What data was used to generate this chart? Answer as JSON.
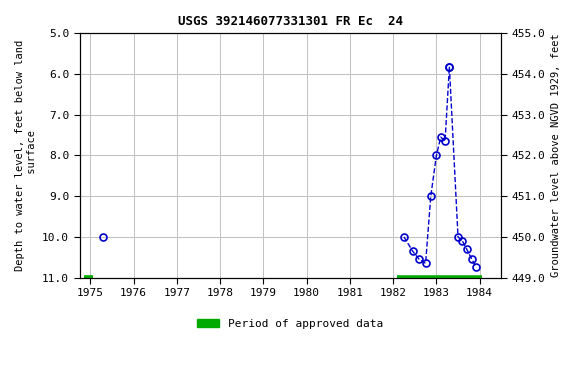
{
  "title": "USGS 392146077331301 FR Ec  24",
  "ylabel_left": "Depth to water level, feet below land\n surface",
  "ylabel_right": "Groundwater level above NGVD 1929, feet",
  "xlim": [
    1974.75,
    1984.5
  ],
  "ylim_left": [
    5.0,
    11.0
  ],
  "ylim_right": [
    449.0,
    455.0
  ],
  "xticks": [
    1975,
    1976,
    1977,
    1978,
    1979,
    1980,
    1981,
    1982,
    1983,
    1984
  ],
  "yticks_left": [
    5.0,
    6.0,
    7.0,
    8.0,
    9.0,
    10.0,
    11.0
  ],
  "yticks_right": [
    449.0,
    450.0,
    451.0,
    452.0,
    453.0,
    454.0,
    455.0
  ],
  "isolated_x": [
    1975.3
  ],
  "isolated_depth": [
    10.0
  ],
  "segment1_x": [
    1982.25,
    1982.45,
    1982.6,
    1982.75,
    1982.87,
    1983.0,
    1983.1,
    1983.2,
    1983.3
  ],
  "segment1_depth": [
    10.0,
    10.35,
    10.55,
    10.65,
    9.0,
    8.0,
    7.55,
    7.65,
    5.82
  ],
  "segment2_x": [
    1983.3,
    1983.5,
    1983.6,
    1983.7,
    1983.82,
    1983.92
  ],
  "segment2_depth": [
    5.82,
    10.0,
    10.1,
    10.3,
    10.55,
    10.75
  ],
  "approved_color": "#00aa00",
  "point_color": "#0000cc",
  "line_color": "#0000cc",
  "bg_color": "#ffffff",
  "grid_color": "#c0c0c0"
}
